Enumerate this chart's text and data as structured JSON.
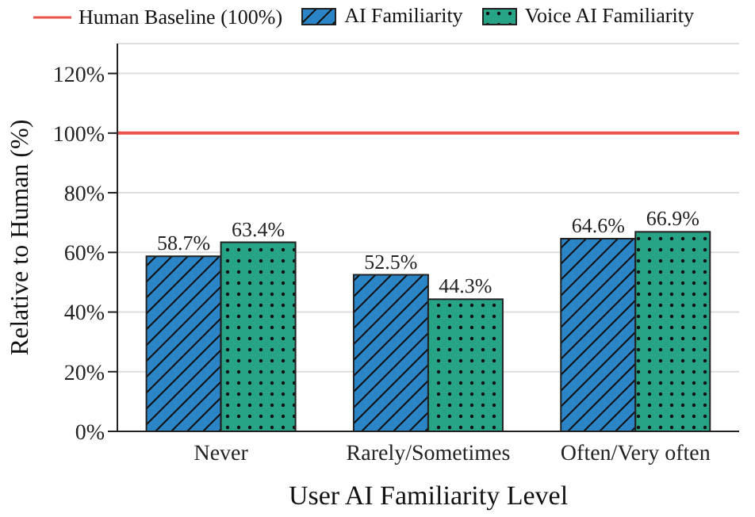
{
  "chart_data": {
    "type": "bar",
    "xlabel": "User AI Familiarity Level",
    "ylabel": "Relative to Human (%)",
    "categories": [
      "Never",
      "Rarely/Sometimes",
      "Often/Very often"
    ],
    "series": [
      {
        "name": "AI Familiarity",
        "color": "#2b84c6",
        "values": [
          58.7,
          52.5,
          64.6
        ],
        "value_labels": [
          "58.7%",
          "52.5%",
          "64.6%"
        ]
      },
      {
        "name": "Voice AI Familiarity",
        "color": "#27a386",
        "values": [
          63.4,
          44.3,
          66.9
        ],
        "value_labels": [
          "63.4%",
          "44.3%",
          "66.9%"
        ]
      }
    ],
    "ylim": [
      0,
      130
    ],
    "yticks": [
      {
        "value": 0,
        "label": "0%"
      },
      {
        "value": 20,
        "label": "20%"
      },
      {
        "value": 40,
        "label": "40%"
      },
      {
        "value": 60,
        "label": "60%"
      },
      {
        "value": 80,
        "label": "80%"
      },
      {
        "value": 100,
        "label": "100%"
      },
      {
        "value": 120,
        "label": "120%"
      }
    ],
    "ref_lines": [
      {
        "axis": "y",
        "value": 100,
        "label": "Human Baseline (100%)",
        "color": "#e8534a"
      }
    ],
    "grid": "y",
    "legend": "top"
  }
}
